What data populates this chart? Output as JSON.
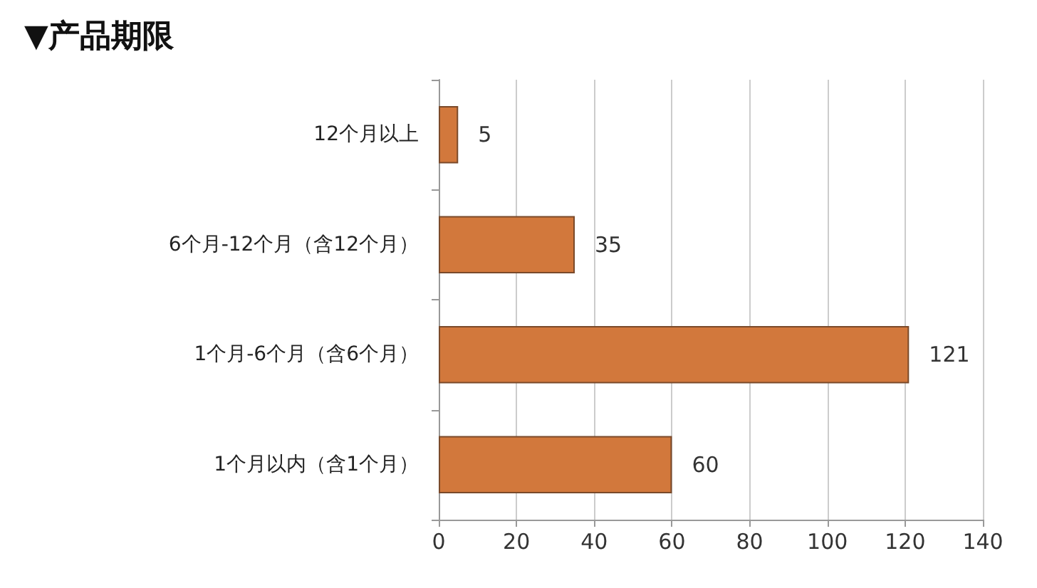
{
  "chart_data": {
    "type": "bar",
    "orientation": "horizontal",
    "title": "▼产品期限",
    "categories": [
      "12个月以上",
      "6个月-12个月（含12个月）",
      "1个月-6个月（含6个月）",
      "1个月以内（含1个月）"
    ],
    "values": [
      5,
      35,
      121,
      60
    ],
    "color": "#d2783c",
    "xlim": [
      0,
      140
    ],
    "xticks": [
      0,
      20,
      40,
      60,
      80,
      100,
      120,
      140
    ],
    "grid": "x",
    "data_labels": true
  }
}
